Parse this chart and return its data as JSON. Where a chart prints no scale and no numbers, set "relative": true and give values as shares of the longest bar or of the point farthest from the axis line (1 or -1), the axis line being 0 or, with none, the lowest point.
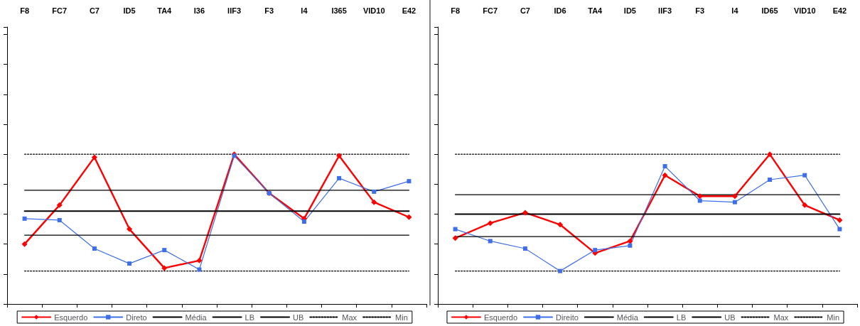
{
  "chart_data": [
    {
      "type": "line",
      "relative": true,
      "grid": false,
      "legend": "bottom",
      "tick_labels": "x",
      "categories": [
        "F8",
        "FC7",
        "C7",
        "ID5",
        "TA4",
        "I36",
        "IIF3",
        "F3",
        "I4",
        "I365",
        "VID10",
        "E42"
      ],
      "series": [
        {
          "name": "Esquerdo",
          "color": "#ff0000",
          "marker": "diamond",
          "line_style": "solid",
          "values": [
            0.4,
            0.66,
            0.98,
            0.5,
            0.24,
            0.29,
            1.0,
            0.74,
            0.57,
            0.99,
            0.68,
            0.58
          ]
        },
        {
          "name": "Direto",
          "color": "#3f6fe8",
          "marker": "square",
          "line_style": "solid",
          "values": [
            0.57,
            0.56,
            0.37,
            0.27,
            0.36,
            0.23,
            0.99,
            0.74,
            0.55,
            0.84,
            0.75,
            0.82
          ]
        },
        {
          "name": "Média",
          "color": "#000000",
          "marker": "none",
          "line_style": "solid",
          "values": [
            0.62,
            0.62,
            0.62,
            0.62,
            0.62,
            0.62,
            0.62,
            0.62,
            0.62,
            0.62,
            0.62,
            0.62
          ]
        },
        {
          "name": "LB",
          "color": "#000000",
          "marker": "none",
          "line_style": "solid",
          "values": [
            0.46,
            0.46,
            0.46,
            0.46,
            0.46,
            0.46,
            0.46,
            0.46,
            0.46,
            0.46,
            0.46,
            0.46
          ]
        },
        {
          "name": "UB",
          "color": "#000000",
          "marker": "none",
          "line_style": "solid",
          "values": [
            0.76,
            0.76,
            0.76,
            0.76,
            0.76,
            0.76,
            0.76,
            0.76,
            0.76,
            0.76,
            0.76,
            0.76
          ]
        },
        {
          "name": "Max",
          "color": "#000000",
          "marker": "none",
          "line_style": "dotted",
          "values": [
            1.0,
            1.0,
            1.0,
            1.0,
            1.0,
            1.0,
            1.0,
            1.0,
            1.0,
            1.0,
            1.0,
            1.0
          ]
        },
        {
          "name": "Min",
          "color": "#000000",
          "marker": "none",
          "line_style": "dotted",
          "values": [
            0.22,
            0.22,
            0.22,
            0.22,
            0.22,
            0.22,
            0.22,
            0.22,
            0.22,
            0.22,
            0.22,
            0.22
          ]
        }
      ]
    },
    {
      "type": "line",
      "relative": true,
      "grid": false,
      "legend": "bottom",
      "tick_labels": "x",
      "categories": [
        "F8",
        "FC7",
        "C7",
        "ID6",
        "TA4",
        "ID5",
        "IIF3",
        "F3",
        "I4",
        "ID65",
        "VID10",
        "E42"
      ],
      "series": [
        {
          "name": "Esquerdo",
          "color": "#ff0000",
          "marker": "diamond",
          "line_style": "solid",
          "values": [
            0.44,
            0.54,
            0.61,
            0.53,
            0.34,
            0.42,
            0.86,
            0.72,
            0.72,
            1.0,
            0.66,
            0.56
          ]
        },
        {
          "name": "Direito",
          "color": "#3f6fe8",
          "marker": "square",
          "line_style": "solid",
          "values": [
            0.5,
            0.42,
            0.37,
            0.22,
            0.36,
            0.39,
            0.92,
            0.69,
            0.68,
            0.83,
            0.86,
            0.5
          ]
        },
        {
          "name": "Média",
          "color": "#000000",
          "marker": "none",
          "line_style": "solid",
          "values": [
            0.6,
            0.6,
            0.6,
            0.6,
            0.6,
            0.6,
            0.6,
            0.6,
            0.6,
            0.6,
            0.6,
            0.6
          ]
        },
        {
          "name": "LB",
          "color": "#000000",
          "marker": "none",
          "line_style": "solid",
          "values": [
            0.45,
            0.45,
            0.45,
            0.45,
            0.45,
            0.45,
            0.45,
            0.45,
            0.45,
            0.45,
            0.45,
            0.45
          ]
        },
        {
          "name": "UB",
          "color": "#000000",
          "marker": "none",
          "line_style": "solid",
          "values": [
            0.73,
            0.73,
            0.73,
            0.73,
            0.73,
            0.73,
            0.73,
            0.73,
            0.73,
            0.73,
            0.73,
            0.73
          ]
        },
        {
          "name": "Max",
          "color": "#000000",
          "marker": "none",
          "line_style": "dotted",
          "values": [
            1.0,
            1.0,
            1.0,
            1.0,
            1.0,
            1.0,
            1.0,
            1.0,
            1.0,
            1.0,
            1.0,
            1.0
          ]
        },
        {
          "name": "Min",
          "color": "#000000",
          "marker": "none",
          "line_style": "dotted",
          "values": [
            0.22,
            0.22,
            0.22,
            0.22,
            0.22,
            0.22,
            0.22,
            0.22,
            0.22,
            0.22,
            0.22,
            0.22
          ]
        }
      ]
    }
  ]
}
